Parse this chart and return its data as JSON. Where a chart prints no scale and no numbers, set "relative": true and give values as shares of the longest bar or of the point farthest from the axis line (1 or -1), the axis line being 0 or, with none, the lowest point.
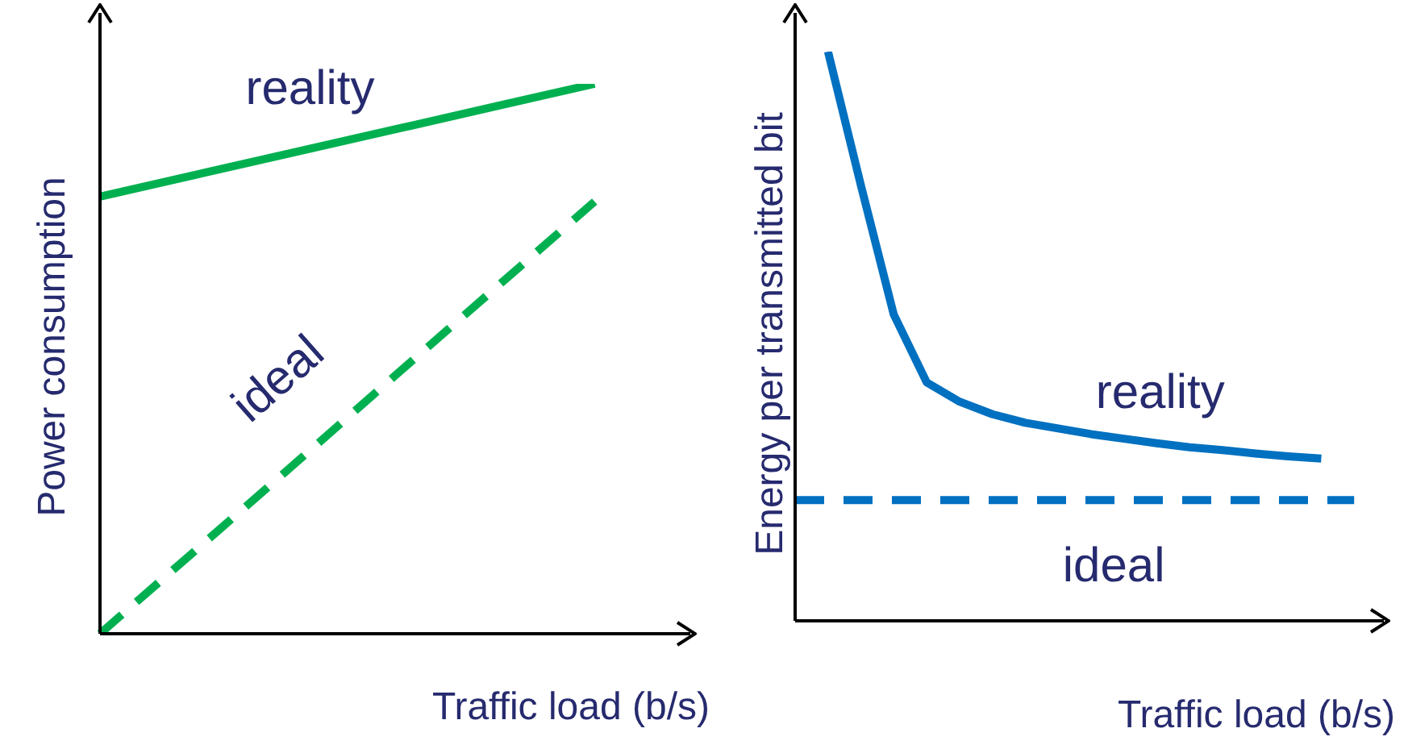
{
  "chart_data": [
    {
      "type": "line",
      "relative": true,
      "xlabel": "Traffic load (b/s)",
      "ylabel": "Power consumption",
      "categories": [
        null,
        null,
        null,
        null,
        null,
        null,
        null
      ],
      "series": [
        {
          "name": "reality",
          "color": "#00b050",
          "line_style": "solid",
          "values": [
            0.795,
            0.836,
            0.877,
            0.918,
            0.959,
            1.0,
            null
          ]
        },
        {
          "name": "ideal",
          "color": "#00b050",
          "line_style": "dashed",
          "values": [
            0,
            0.157,
            0.314,
            0.472,
            0.629,
            0.786,
            null
          ]
        }
      ]
    },
    {
      "type": "line",
      "relative": true,
      "xlabel": "Traffic load (b/s)",
      "ylabel": "Energy per transmitted bit",
      "categories": [
        null,
        null,
        null,
        null,
        null,
        null,
        null,
        null,
        null,
        null,
        null,
        null,
        null,
        null,
        null,
        null,
        null,
        null,
        null
      ],
      "series": [
        {
          "name": "reality",
          "color": "#0070c0",
          "line_style": "solid",
          "values": [
            null,
            1.0,
            0.765,
            0.538,
            0.419,
            0.385,
            0.363,
            0.348,
            0.338,
            0.328,
            0.32,
            0.312,
            0.305,
            0.3,
            0.294,
            0.289,
            0.285,
            null,
            null
          ]
        },
        {
          "name": "ideal",
          "color": "#0070c0",
          "line_style": "dashed",
          "values": [
            0.212,
            0.212,
            0.212,
            0.212,
            0.212,
            0.212,
            0.212,
            0.212,
            0.212,
            0.212,
            0.212,
            0.212,
            0.212,
            0.212,
            0.212,
            0.212,
            0.212,
            0.212,
            null
          ]
        }
      ]
    }
  ]
}
